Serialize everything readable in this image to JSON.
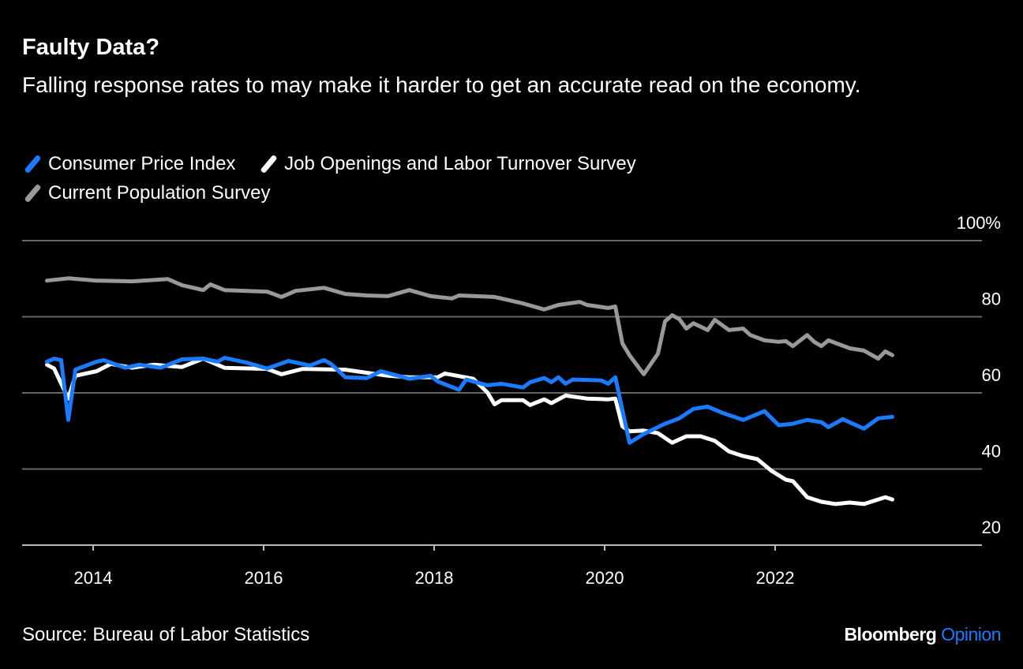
{
  "title": "Faulty Data?",
  "subtitle": "Falling response rates to may make it harder to get an accurate read on the economy.",
  "source": "Source: Bureau of Labor Statistics",
  "logo": {
    "brand": "Bloomberg",
    "section": "Opinion"
  },
  "chart_data": {
    "type": "line",
    "title": "Faulty Data?",
    "ylim": [
      20,
      100
    ],
    "y_ticks": [
      "100%",
      "80",
      "60",
      "40",
      "20"
    ],
    "y_tick_values": [
      100,
      80,
      60,
      40,
      20
    ],
    "x_ticks": [
      "2014",
      "2016",
      "2018",
      "2020",
      "2022"
    ],
    "y_axis_side": "right",
    "grid": true,
    "legend_position": "top-left",
    "series": [
      {
        "name": "Consumer Price Index",
        "color": "#1a7bff",
        "points": [
          [
            "2013-06",
            68.2
          ],
          [
            "2013-07",
            69
          ],
          [
            "2013-08",
            68.6
          ],
          [
            "2013-09",
            52.9
          ],
          [
            "2013-10",
            66.1
          ],
          [
            "2014-01",
            68.2
          ],
          [
            "2014-02",
            68.6
          ],
          [
            "2014-05",
            66.6
          ],
          [
            "2014-07",
            67.4
          ],
          [
            "2014-10",
            66.6
          ],
          [
            "2015-01",
            68.8
          ],
          [
            "2015-04",
            69
          ],
          [
            "2015-06",
            68.2
          ],
          [
            "2015-07",
            69.2
          ],
          [
            "2015-10",
            68
          ],
          [
            "2016-01",
            66.4
          ],
          [
            "2016-04",
            68.4
          ],
          [
            "2016-07",
            67.2
          ],
          [
            "2016-09",
            68.6
          ],
          [
            "2016-10",
            67.6
          ],
          [
            "2016-12",
            64.1
          ],
          [
            "2017-03",
            63.9
          ],
          [
            "2017-05",
            65.7
          ],
          [
            "2017-09",
            63.7
          ],
          [
            "2017-12",
            64.5
          ],
          [
            "2018-01",
            63
          ],
          [
            "2018-04",
            60.8
          ],
          [
            "2018-05",
            63.5
          ],
          [
            "2018-08",
            62
          ],
          [
            "2018-10",
            62.4
          ],
          [
            "2019-01",
            61.4
          ],
          [
            "2019-02",
            62.8
          ],
          [
            "2019-04",
            63.9
          ],
          [
            "2019-05",
            62.8
          ],
          [
            "2019-06",
            64.1
          ],
          [
            "2019-07",
            62.4
          ],
          [
            "2019-08",
            63.5
          ],
          [
            "2019-12",
            63.3
          ],
          [
            "2020-01",
            62.4
          ],
          [
            "2020-02",
            64.1
          ],
          [
            "2020-04",
            46.9
          ],
          [
            "2020-06",
            49.2
          ],
          [
            "2020-09",
            51.9
          ],
          [
            "2020-11",
            53.3
          ],
          [
            "2021-01",
            55.8
          ],
          [
            "2021-03",
            56.4
          ],
          [
            "2021-05",
            54.8
          ],
          [
            "2021-08",
            52.9
          ],
          [
            "2021-11",
            55.2
          ],
          [
            "2022-01",
            51.5
          ],
          [
            "2022-03",
            51.9
          ],
          [
            "2022-05",
            52.9
          ],
          [
            "2022-07",
            52.3
          ],
          [
            "2022-08",
            51
          ],
          [
            "2022-10",
            53.1
          ],
          [
            "2023-01",
            50.6
          ],
          [
            "2023-03",
            53.3
          ],
          [
            "2023-05",
            53.7
          ]
        ]
      },
      {
        "name": "Job Openings and Labor Turnover Survey",
        "color": "#ffffff",
        "points": [
          [
            "2013-06",
            67.4
          ],
          [
            "2013-07",
            66.4
          ],
          [
            "2013-09",
            58.5
          ],
          [
            "2013-10",
            64.5
          ],
          [
            "2014-01",
            65.7
          ],
          [
            "2014-03",
            67.6
          ],
          [
            "2014-06",
            66.6
          ],
          [
            "2014-09",
            67.4
          ],
          [
            "2015-01",
            66.8
          ],
          [
            "2015-04",
            69
          ],
          [
            "2015-07",
            66.6
          ],
          [
            "2016-01",
            66.3
          ],
          [
            "2016-03",
            64.9
          ],
          [
            "2016-06",
            66.3
          ],
          [
            "2016-12",
            66.1
          ],
          [
            "2017-06",
            64.5
          ],
          [
            "2017-09",
            64.1
          ],
          [
            "2018-01",
            64.1
          ],
          [
            "2018-02",
            65.1
          ],
          [
            "2018-06",
            63.7
          ],
          [
            "2018-08",
            60.1
          ],
          [
            "2018-09",
            57
          ],
          [
            "2018-10",
            58.1
          ],
          [
            "2019-01",
            58.1
          ],
          [
            "2019-02",
            56.8
          ],
          [
            "2019-04",
            58.3
          ],
          [
            "2019-05",
            57.3
          ],
          [
            "2019-07",
            59.3
          ],
          [
            "2019-10",
            58.5
          ],
          [
            "2020-01",
            58.3
          ],
          [
            "2020-02",
            58.5
          ],
          [
            "2020-03",
            51.2
          ],
          [
            "2020-04",
            49.9
          ],
          [
            "2020-06",
            50.1
          ],
          [
            "2020-08",
            49.4
          ],
          [
            "2020-10",
            46.9
          ],
          [
            "2020-12",
            48.6
          ],
          [
            "2021-02",
            48.6
          ],
          [
            "2021-04",
            47.4
          ],
          [
            "2021-06",
            44.6
          ],
          [
            "2021-08",
            43.4
          ],
          [
            "2021-10",
            42.6
          ],
          [
            "2021-12",
            39.5
          ],
          [
            "2022-02",
            37.2
          ],
          [
            "2022-03",
            36.8
          ],
          [
            "2022-05",
            32.6
          ],
          [
            "2022-07",
            31.4
          ],
          [
            "2022-09",
            30.8
          ],
          [
            "2022-11",
            31.2
          ],
          [
            "2023-01",
            30.8
          ],
          [
            "2023-03",
            32
          ],
          [
            "2023-04",
            32.6
          ],
          [
            "2023-05",
            32
          ]
        ]
      },
      {
        "name": "Current Population Survey",
        "color": "#999999",
        "points": [
          [
            "2013-06",
            89.5
          ],
          [
            "2013-09",
            90.1
          ],
          [
            "2014-01",
            89.5
          ],
          [
            "2014-06",
            89.3
          ],
          [
            "2014-11",
            89.9
          ],
          [
            "2015-01",
            88.3
          ],
          [
            "2015-04",
            87
          ],
          [
            "2015-05",
            88.5
          ],
          [
            "2015-07",
            87
          ],
          [
            "2016-01",
            86.6
          ],
          [
            "2016-03",
            85.2
          ],
          [
            "2016-05",
            86.8
          ],
          [
            "2016-09",
            87.6
          ],
          [
            "2016-12",
            86
          ],
          [
            "2017-03",
            85.6
          ],
          [
            "2017-06",
            85.4
          ],
          [
            "2017-09",
            87
          ],
          [
            "2017-12",
            85.4
          ],
          [
            "2018-03",
            84.8
          ],
          [
            "2018-04",
            85.6
          ],
          [
            "2018-09",
            85.2
          ],
          [
            "2019-01",
            83.5
          ],
          [
            "2019-04",
            81.9
          ],
          [
            "2019-06",
            83.1
          ],
          [
            "2019-09",
            83.9
          ],
          [
            "2019-10",
            83.1
          ],
          [
            "2020-01",
            82.3
          ],
          [
            "2020-02",
            82.7
          ],
          [
            "2020-03",
            73
          ],
          [
            "2020-04",
            69.9
          ],
          [
            "2020-06",
            64.9
          ],
          [
            "2020-08",
            70.3
          ],
          [
            "2020-09",
            78.8
          ],
          [
            "2020-10",
            80.4
          ],
          [
            "2020-11",
            79.4
          ],
          [
            "2020-12",
            76.9
          ],
          [
            "2021-01",
            78.3
          ],
          [
            "2021-03",
            76.5
          ],
          [
            "2021-04",
            79.2
          ],
          [
            "2021-06",
            76.5
          ],
          [
            "2021-08",
            76.9
          ],
          [
            "2021-09",
            75.2
          ],
          [
            "2021-11",
            73.8
          ],
          [
            "2022-01",
            73.4
          ],
          [
            "2022-02",
            73.6
          ],
          [
            "2022-03",
            72.3
          ],
          [
            "2022-05",
            75.2
          ],
          [
            "2022-06",
            73.4
          ],
          [
            "2022-07",
            72.3
          ],
          [
            "2022-08",
            73.8
          ],
          [
            "2022-11",
            71.7
          ],
          [
            "2023-01",
            71.1
          ],
          [
            "2023-03",
            69
          ],
          [
            "2023-04",
            70.9
          ],
          [
            "2023-05",
            69.9
          ]
        ]
      }
    ]
  }
}
